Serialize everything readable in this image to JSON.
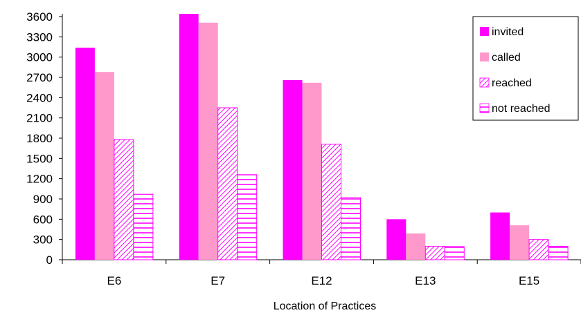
{
  "chart_data": {
    "type": "bar",
    "title": "",
    "xlabel": "Location of Practices",
    "ylabel": "",
    "categories": [
      "E6",
      "E7",
      "E12",
      "E13",
      "E15"
    ],
    "ylim": [
      0,
      3600
    ],
    "yticks": [
      0,
      300,
      600,
      900,
      1200,
      1500,
      1800,
      2100,
      2400,
      2700,
      3000,
      3300,
      3600
    ],
    "grid": false,
    "legend_position": "top-right",
    "series": [
      {
        "name": "invited",
        "values": [
          3140,
          3640,
          2660,
          600,
          700
        ],
        "color": "#ff00ff",
        "pattern": "solid"
      },
      {
        "name": "called",
        "values": [
          2780,
          3510,
          2620,
          390,
          510
        ],
        "color": "#ff99cc",
        "pattern": "solid"
      },
      {
        "name": "reached",
        "values": [
          1780,
          2250,
          1710,
          200,
          300
        ],
        "color": "#ff00ff",
        "pattern": "diagonal"
      },
      {
        "name": "not reached",
        "values": [
          970,
          1260,
          920,
          195,
          200
        ],
        "color": "#ff00ff",
        "pattern": "horizontal"
      }
    ]
  }
}
